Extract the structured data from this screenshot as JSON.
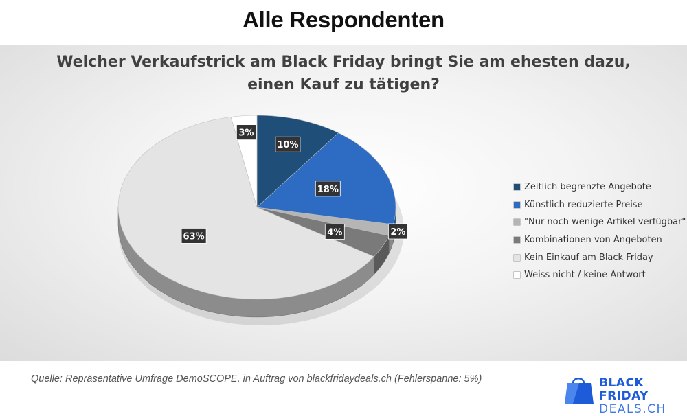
{
  "header": {
    "title": "Alle Respondenten"
  },
  "chart_data": {
    "type": "pie",
    "title_lines": [
      "Welcher Verkaufstrick am Black Friday bringt Sie am ehesten dazu,",
      "einen Kauf zu tätigen?"
    ],
    "slices": [
      {
        "label": "Zeitlich begrenzte Angebote",
        "value": 10,
        "value_label": "10%",
        "color": "#1f4e79",
        "side_color": "#163a5c"
      },
      {
        "label": "Künstlich reduzierte Preise",
        "value": 18,
        "value_label": "18%",
        "color": "#2e6bc2",
        "side_color": "#214f92"
      },
      {
        "label": "\"Nur noch wenige Artikel verfügbar\"",
        "value": 2,
        "value_label": "2%",
        "color": "#b5b5b5",
        "side_color": "#8a8a8a"
      },
      {
        "label": "Kombinationen von Angeboten",
        "value": 4,
        "value_label": "4%",
        "color": "#7a7a7a",
        "side_color": "#5a5a5a"
      },
      {
        "label": "Kein Einkauf am Black Friday",
        "value": 63,
        "value_label": "63%",
        "color": "#e4e4e4",
        "side_color": "#8c8c8c"
      },
      {
        "label": "Weiss nicht / keine Antwort",
        "value": 3,
        "value_label": "3%",
        "color": "#ffffff",
        "side_color": "#cfcfcf"
      }
    ],
    "legend_position": "right",
    "style": "3d-pie"
  },
  "footer": {
    "source": "Quelle: Repräsentative Umfrage DemoSCOPE, in Auftrag von blackfridaydeals.ch (Fehlerspanne: 5%)",
    "brand_line1": "BLACK FRIDAY",
    "brand_line2": "DEALS.CH"
  },
  "colors": {
    "brand_blue": "#1d5bd8",
    "label_bg": "#333333"
  }
}
